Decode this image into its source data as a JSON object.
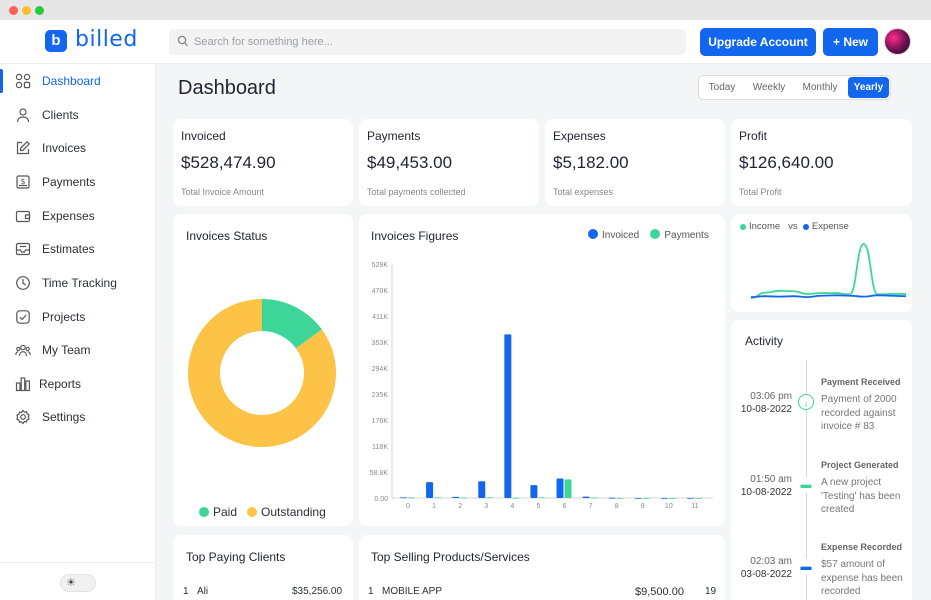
{
  "app": {
    "logo_letter": "b",
    "name": "billed"
  },
  "search": {
    "placeholder": "Search for something here..."
  },
  "header": {
    "upgrade_label": "Upgrade Account",
    "new_label": "New",
    "new_icon": "plus-icon"
  },
  "sidebar": {
    "items": [
      {
        "label": "Dashboard",
        "icon": "grid-icon",
        "active": true
      },
      {
        "label": "Clients",
        "icon": "user-icon"
      },
      {
        "label": "Invoices",
        "icon": "edit-icon"
      },
      {
        "label": "Payments",
        "icon": "dollar-icon"
      },
      {
        "label": "Expenses",
        "icon": "wallet-icon"
      },
      {
        "label": "Estimates",
        "icon": "inbox-icon"
      },
      {
        "label": "Time Tracking",
        "icon": "clock-icon"
      },
      {
        "label": "Projects",
        "icon": "check-square-icon"
      },
      {
        "label": "My Team",
        "icon": "team-icon"
      },
      {
        "label": "Reports",
        "icon": "bar-chart-icon"
      },
      {
        "label": "Settings",
        "icon": "gear-icon"
      }
    ],
    "theme_toggle_icon": "sun-icon"
  },
  "page": {
    "title": "Dashboard"
  },
  "range": {
    "options": [
      "Today",
      "Weekly",
      "Monthly",
      "Yearly"
    ],
    "selected": "Yearly"
  },
  "stats": [
    {
      "title": "Invoiced",
      "value": "$528,474.90",
      "sub": "Total Invoice Amount"
    },
    {
      "title": "Payments",
      "value": "$49,453.00",
      "sub": "Total payments collected"
    },
    {
      "title": "Expenses",
      "value": "$5,182.00",
      "sub": "Total expenses"
    },
    {
      "title": "Profit",
      "value": "$126,640.00",
      "sub": "Total Profit"
    }
  ],
  "colors": {
    "accent": "#1366ee",
    "green": "#3dd598",
    "yellow": "#fcc347"
  },
  "invoices_status": {
    "title": "Invoices Status",
    "legend_paid": "Paid",
    "legend_outstanding": "Outstanding"
  },
  "invoices_figures": {
    "title": "Invoices Figures",
    "legend_invoiced": "Invoiced",
    "legend_payments": "Payments"
  },
  "income_expense": {
    "income": "Income",
    "vs": "vs",
    "expense": "Expense"
  },
  "activity": {
    "title": "Activity",
    "items": [
      {
        "time": "03:06 pm",
        "date": "10-08-2022",
        "heading": "Payment Received",
        "desc": "Payment of 2000 recorded against invoice # 83",
        "icon": "download-icon"
      },
      {
        "time": "01:50 am",
        "date": "10-08-2022",
        "heading": "Project Generated",
        "desc": "A new project 'Testing' has been created",
        "icon": "folder-icon"
      },
      {
        "time": "02:03 am",
        "date": "03-08-2022",
        "heading": "Expense Recorded",
        "desc": "$57 amount of expense has been recorded",
        "icon": "wallet-icon"
      }
    ]
  },
  "top_clients": {
    "title": "Top Paying Clients",
    "rows": [
      {
        "rank": "1",
        "name": "Ali",
        "amount": "$35,256.00"
      }
    ]
  },
  "top_products": {
    "title": "Top Selling Products/Services",
    "rows": [
      {
        "rank": "1",
        "name": "MOBILE APP",
        "amount": "$9,500.00",
        "count": "19"
      }
    ]
  },
  "chart_data": [
    {
      "type": "pie",
      "categories": [
        "Paid",
        "Outstanding"
      ],
      "values": [
        15,
        85
      ],
      "title": "Invoices Status",
      "donut": true
    },
    {
      "type": "bar",
      "title": "Invoices Figures",
      "categories": [
        "0",
        "1",
        "2",
        "3",
        "4",
        "5",
        "6",
        "7",
        "8",
        "9",
        "10",
        "11"
      ],
      "series": [
        {
          "name": "Invoiced",
          "values": [
            1500,
            36000,
            2500,
            38000,
            370000,
            29000,
            44000,
            3000,
            500,
            0,
            0,
            0
          ]
        },
        {
          "name": "Payments",
          "values": [
            1000,
            1500,
            1000,
            1500,
            500,
            1500,
            42000,
            1000,
            0,
            0,
            0,
            0
          ]
        }
      ],
      "yticks": [
        "0.00",
        "58.8K",
        "118K",
        "176K",
        "235K",
        "294K",
        "353K",
        "411K",
        "470K",
        "529K"
      ],
      "ylim": [
        0,
        529000
      ],
      "grid": false,
      "legend": "top-right"
    },
    {
      "type": "line",
      "series": [
        {
          "name": "Income",
          "values": [
            0,
            6000,
            8000,
            7500,
            4500,
            5500,
            5500,
            4000,
            60000,
            4000,
            4500,
            4500
          ]
        },
        {
          "name": "Expense",
          "values": [
            1000,
            2000,
            1500,
            2000,
            1000,
            2500,
            3000,
            2500,
            1500,
            3000,
            2500,
            2000
          ]
        }
      ],
      "legend": "top-left"
    }
  ]
}
